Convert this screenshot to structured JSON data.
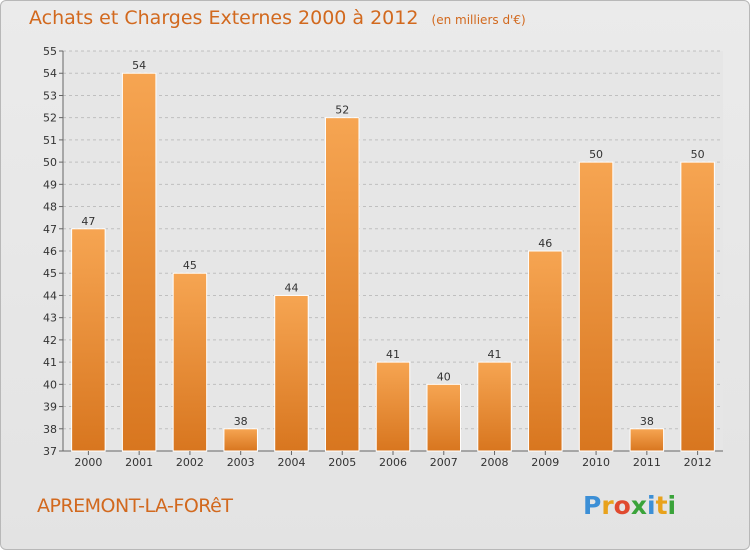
{
  "header": {
    "title": "Achats et Charges Externes 2000 à 2012",
    "subtitle": "(en milliers d'€)"
  },
  "footer": {
    "commune": "APREMONT-LA-FORêT",
    "logo_letters": [
      {
        "char": "P",
        "color": "#3c8fd6"
      },
      {
        "char": "r",
        "color": "#e8a21c"
      },
      {
        "char": "o",
        "color": "#e04a2f"
      },
      {
        "char": "x",
        "color": "#3aa33a"
      },
      {
        "char": "i",
        "color": "#3c8fd6"
      },
      {
        "char": "t",
        "color": "#e8a21c"
      },
      {
        "char": "i",
        "color": "#3aa33a"
      }
    ]
  },
  "colors": {
    "bar_light": "#f6a552",
    "bar_dark": "#d8761f",
    "grid": "#bfbfbf",
    "text_accent": "#d2691e"
  },
  "chart_data": {
    "type": "bar",
    "title": "Achats et Charges Externes 2000 à 2012",
    "subtitle": "(en milliers d'€)",
    "categories": [
      "2000",
      "2001",
      "2002",
      "2003",
      "2004",
      "2005",
      "2006",
      "2007",
      "2008",
      "2009",
      "2010",
      "2011",
      "2012"
    ],
    "values": [
      47,
      54,
      45,
      38,
      44,
      52,
      41,
      40,
      41,
      46,
      50,
      38,
      50
    ],
    "ylim": [
      37,
      55
    ],
    "yticks": [
      37,
      38,
      39,
      40,
      41,
      42,
      43,
      44,
      45,
      46,
      47,
      48,
      49,
      50,
      51,
      52,
      53,
      54,
      55
    ],
    "grid": true,
    "xlabel": "",
    "ylabel": ""
  }
}
